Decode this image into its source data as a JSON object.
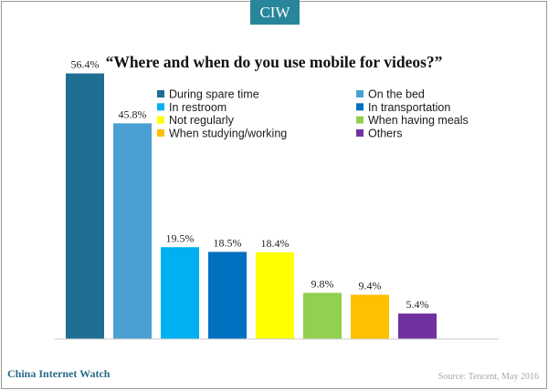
{
  "badge": "CIW",
  "footer": {
    "brand": "China Internet Watch",
    "source": "Source: Tencent, May 2016"
  },
  "chart_data": {
    "type": "bar",
    "title": "“Where and when do you use mobile for videos?”",
    "xlabel": "",
    "ylabel": "",
    "ylim": [
      0,
      60
    ],
    "grid": false,
    "legend_position": "top-right",
    "categories": [
      "During spare time",
      "On the bed",
      "In restroom",
      "In transportation",
      "Not regularly",
      "When having meals",
      "When studying/working",
      "Others"
    ],
    "values": [
      56.4,
      45.8,
      19.5,
      18.5,
      18.4,
      9.8,
      9.4,
      5.4
    ],
    "value_labels": [
      "56.4%",
      "45.8%",
      "19.5%",
      "18.5%",
      "18.4%",
      "9.8%",
      "9.4%",
      "5.4%"
    ],
    "colors": [
      "#1f6e93",
      "#4aa0d2",
      "#00b0f0",
      "#0070c0",
      "#ffff00",
      "#92d050",
      "#ffc000",
      "#7030a0"
    ]
  }
}
